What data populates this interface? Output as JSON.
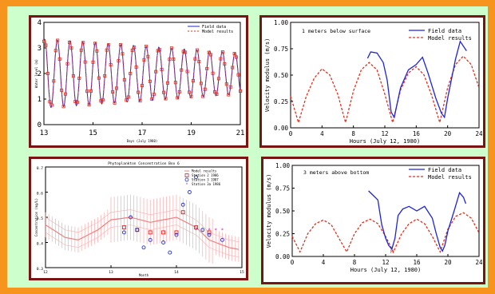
{
  "colors": {
    "frame": "#f7941e",
    "background": "#ccffcc",
    "panel_border": "#7a1414",
    "field": "#1f24d6",
    "model": "#e0301e"
  },
  "chart_data": [
    {
      "type": "line",
      "xlim": [
        13,
        21
      ],
      "ylim": [
        0,
        4
      ],
      "xticks": [
        "13",
        "15",
        "17",
        "19",
        "21"
      ],
      "yticks": [
        "0",
        "1",
        "2",
        "3",
        "4"
      ],
      "xlabel": "Days (July 1980)",
      "ylabel": "Water level (m)",
      "legend": [
        "Field data",
        "Model results"
      ],
      "legend_placement": "top-right",
      "period_days": 0.517,
      "amplitude_start": 1.35,
      "amplitude_end": 0.8,
      "mean": 2.0
    },
    {
      "type": "line",
      "xlim": [
        0,
        24
      ],
      "ylim": [
        0,
        1
      ],
      "xticks": [
        "0",
        "4",
        "8",
        "12",
        "16",
        "20",
        "24"
      ],
      "yticks": [
        "0.00",
        "0.25",
        "0.50",
        "0.75",
        "1.00"
      ],
      "xlabel": "Hours (July 12, 1980)",
      "ylabel": "Velocity modulus (m/s)",
      "annotation": "1 meters below surface",
      "legend_placement": "top-right",
      "series": [
        {
          "name": "Field data",
          "x": [
            9.8,
            10.2,
            11,
            11.8,
            12.3,
            12.8,
            13.2,
            14,
            15,
            16,
            16.8,
            17.5,
            18.5,
            19.2,
            19.6,
            20,
            21,
            21.6,
            22.4
          ],
          "y": [
            0.66,
            0.72,
            0.71,
            0.62,
            0.45,
            0.15,
            0.1,
            0.38,
            0.55,
            0.6,
            0.67,
            0.52,
            0.28,
            0.14,
            0.1,
            0.28,
            0.65,
            0.82,
            0.73
          ]
        },
        {
          "name": "Model results",
          "x": [
            0,
            1,
            2,
            3,
            4,
            5,
            6,
            7,
            8,
            9,
            10,
            11,
            12,
            13,
            14,
            15,
            16,
            17,
            18,
            19,
            20,
            21,
            22,
            23,
            24
          ],
          "y": [
            0.3,
            0.05,
            0.3,
            0.47,
            0.56,
            0.5,
            0.32,
            0.05,
            0.35,
            0.55,
            0.62,
            0.55,
            0.32,
            0.05,
            0.36,
            0.52,
            0.58,
            0.5,
            0.3,
            0.05,
            0.38,
            0.6,
            0.68,
            0.6,
            0.38
          ]
        }
      ]
    },
    {
      "type": "scatter",
      "title": "Phytoplankton Concentration Box 6",
      "xticks": [
        "12",
        "13",
        "14",
        "15"
      ],
      "yticks": [
        "0.3",
        "0.4",
        "0.5",
        "0.6",
        "0.7"
      ],
      "ylim": [
        0.3,
        0.7
      ],
      "xlim": [
        12,
        15
      ],
      "xlabel": "Month",
      "ylabel": "Concentration (mg/L)",
      "legend": [
        "Model results",
        "Station 2 1986",
        "Station 3 1987",
        "Station 3a 1986"
      ],
      "legend_placement": "top-right",
      "model": {
        "x": [
          12,
          12.3,
          12.5,
          12.8,
          13,
          13.3,
          13.6,
          14,
          14.3,
          14.5,
          14.8,
          15
        ],
        "y": [
          0.47,
          0.42,
          0.41,
          0.45,
          0.49,
          0.5,
          0.48,
          0.5,
          0.46,
          0.41,
          0.38,
          0.37
        ]
      },
      "station2": {
        "x": [
          13.2,
          13.4,
          13.6,
          13.8,
          14,
          14.1,
          14.3,
          14.5
        ],
        "y": [
          0.46,
          0.45,
          0.44,
          0.44,
          0.44,
          0.52,
          0.46,
          0.44
        ]
      },
      "station3": {
        "x": [
          13.2,
          13.3,
          13.4,
          13.6,
          13.8,
          14,
          14.1,
          14.2,
          14.3,
          14.4,
          14.5,
          14.7,
          13.5,
          13.9
        ],
        "y": [
          0.44,
          0.5,
          0.45,
          0.41,
          0.4,
          0.43,
          0.55,
          0.6,
          0.66,
          0.45,
          0.43,
          0.41,
          0.38,
          0.36
        ]
      },
      "station3a": {
        "x": [
          14.3,
          14.5,
          14.6,
          14.7
        ],
        "y": [
          0.45,
          0.45,
          0.45,
          0.45
        ]
      }
    },
    {
      "type": "line",
      "xlim": [
        0,
        24
      ],
      "ylim": [
        0,
        1
      ],
      "xticks": [
        "0",
        "4",
        "8",
        "12",
        "16",
        "20",
        "24"
      ],
      "yticks": [
        "0.00",
        "0.25",
        "0.50",
        "0.75",
        "1.00"
      ],
      "xlabel": "Hours (July 12, 1980)",
      "ylabel": "Velocity modulus (m/s)",
      "annotation": "3 meters above bottom",
      "legend_placement": "top-right",
      "marker": "M",
      "series": [
        {
          "name": "Field data",
          "x": [
            9.8,
            10.3,
            11,
            11.5,
            12,
            12.4,
            12.8,
            13.2,
            13.6,
            14.2,
            15,
            16,
            17,
            18,
            18.5,
            19,
            19.3,
            19.6,
            20,
            20.8,
            21.5,
            22,
            22.3
          ],
          "y": [
            0.72,
            0.68,
            0.62,
            0.35,
            0.2,
            0.12,
            0.08,
            0.2,
            0.45,
            0.52,
            0.55,
            0.5,
            0.55,
            0.42,
            0.25,
            0.1,
            0.06,
            0.12,
            0.28,
            0.5,
            0.7,
            0.65,
            0.58
          ]
        },
        {
          "name": "Model results",
          "x": [
            0,
            1,
            2,
            3,
            4,
            5,
            6,
            7,
            8,
            9,
            10,
            11,
            12,
            13,
            14,
            15,
            16,
            17,
            18,
            19,
            20,
            21,
            22,
            23,
            24
          ],
          "y": [
            0.22,
            0.05,
            0.25,
            0.36,
            0.4,
            0.35,
            0.2,
            0.05,
            0.25,
            0.37,
            0.41,
            0.36,
            0.22,
            0.05,
            0.24,
            0.36,
            0.41,
            0.36,
            0.22,
            0.05,
            0.3,
            0.44,
            0.48,
            0.42,
            0.26
          ]
        }
      ]
    }
  ]
}
